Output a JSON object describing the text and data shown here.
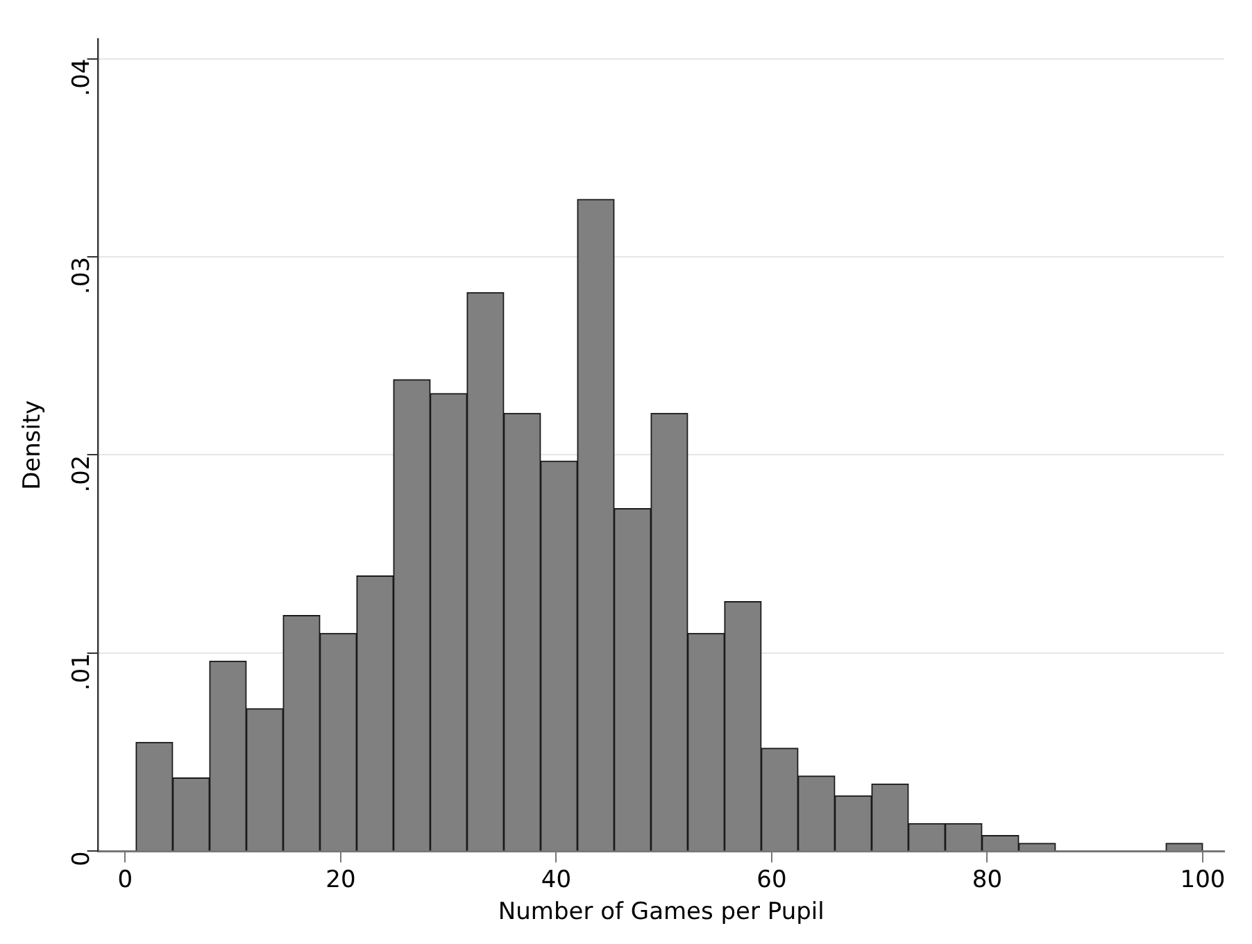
{
  "chart_data": {
    "type": "histogram",
    "xlabel": "Number of Games per Pupil",
    "ylabel": "Density",
    "bins": [
      1,
      4.41,
      7.83,
      11.24,
      14.66,
      18.07,
      21.48,
      24.9,
      28.31,
      31.72,
      35.14,
      38.55,
      41.97,
      45.38,
      48.79,
      52.21,
      55.62,
      59.03,
      62.45,
      65.86,
      69.28,
      72.69,
      76.1,
      79.52,
      82.93,
      86.34,
      89.76,
      93.17,
      96.59,
      100
    ],
    "values": [
      0.0055,
      0.0037,
      0.0096,
      0.0072,
      0.0119,
      0.011,
      0.0139,
      0.0238,
      0.0231,
      0.0282,
      0.0221,
      0.0197,
      0.0329,
      0.0173,
      0.0221,
      0.011,
      0.0126,
      0.0052,
      0.0038,
      0.0028,
      0.0034,
      0.0014,
      0.0014,
      0.0008,
      0.0004,
      0,
      0,
      0,
      0.0004
    ],
    "color": "#808080",
    "xlim": [
      -2.5,
      102
    ],
    "xticks": [
      0,
      20,
      40,
      60,
      80,
      100
    ],
    "ylim": [
      0,
      0.041
    ],
    "yticks": [
      {
        "value": 0,
        "label": "0"
      },
      {
        "value": 0.01,
        "label": ".01"
      },
      {
        "value": 0.02,
        "label": ".02"
      },
      {
        "value": 0.03,
        "label": ".03"
      },
      {
        "value": 0.04,
        "label": ".04"
      }
    ],
    "grid": "y",
    "legend": false
  }
}
